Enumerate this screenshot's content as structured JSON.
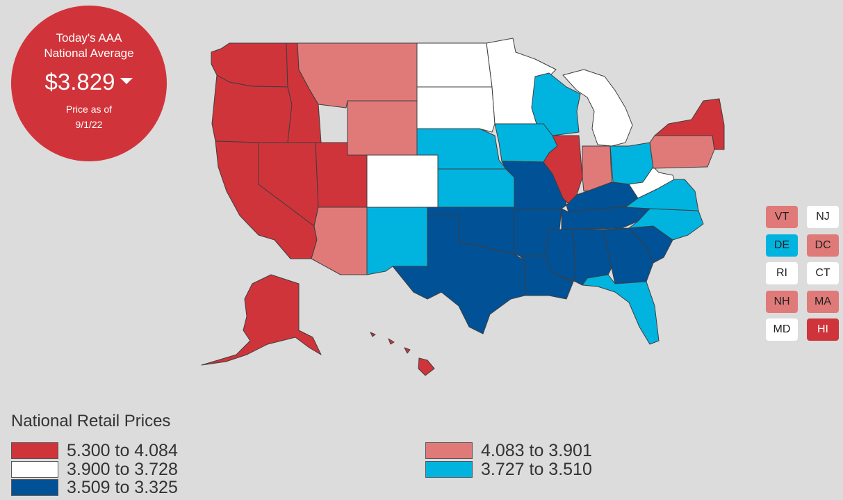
{
  "badge": {
    "line1": "Today's AAA",
    "line2": "National Average",
    "price": "$3.829",
    "asof_line1": "Price as of",
    "asof_line2": "9/1/22"
  },
  "colors": {
    "high": "#cf343a",
    "midhigh": "#e07a79",
    "mid": "#ffffff",
    "midlow": "#00b4df",
    "low": "#005196"
  },
  "chips": [
    {
      "label": "VT",
      "tier": "midhigh"
    },
    {
      "label": "NJ",
      "tier": "mid"
    },
    {
      "label": "DE",
      "tier": "midlow"
    },
    {
      "label": "DC",
      "tier": "midhigh"
    },
    {
      "label": "RI",
      "tier": "mid"
    },
    {
      "label": "CT",
      "tier": "mid"
    },
    {
      "label": "NH",
      "tier": "midhigh"
    },
    {
      "label": "MA",
      "tier": "midhigh"
    },
    {
      "label": "MD",
      "tier": "mid"
    },
    {
      "label": "HI",
      "tier": "high"
    }
  ],
  "states": [
    {
      "code": "WA",
      "tier": "high"
    },
    {
      "code": "OR",
      "tier": "high"
    },
    {
      "code": "CA",
      "tier": "high"
    },
    {
      "code": "NV",
      "tier": "high"
    },
    {
      "code": "ID",
      "tier": "high"
    },
    {
      "code": "UT",
      "tier": "high"
    },
    {
      "code": "AK",
      "tier": "high"
    },
    {
      "code": "HI",
      "tier": "high"
    },
    {
      "code": "IL",
      "tier": "high"
    },
    {
      "code": "NY",
      "tier": "high"
    },
    {
      "code": "MT",
      "tier": "midhigh"
    },
    {
      "code": "WY",
      "tier": "midhigh"
    },
    {
      "code": "AZ",
      "tier": "midhigh"
    },
    {
      "code": "IN",
      "tier": "midhigh"
    },
    {
      "code": "PA",
      "tier": "midhigh"
    },
    {
      "code": "ND",
      "tier": "mid"
    },
    {
      "code": "SD",
      "tier": "mid"
    },
    {
      "code": "MN",
      "tier": "mid"
    },
    {
      "code": "CO",
      "tier": "mid"
    },
    {
      "code": "MI",
      "tier": "mid"
    },
    {
      "code": "WV",
      "tier": "mid"
    },
    {
      "code": "NE",
      "tier": "midlow"
    },
    {
      "code": "KS",
      "tier": "midlow"
    },
    {
      "code": "IA",
      "tier": "midlow"
    },
    {
      "code": "WI",
      "tier": "midlow"
    },
    {
      "code": "NM",
      "tier": "midlow"
    },
    {
      "code": "OH",
      "tier": "midlow"
    },
    {
      "code": "VA",
      "tier": "midlow"
    },
    {
      "code": "NC",
      "tier": "midlow"
    },
    {
      "code": "FL",
      "tier": "midlow"
    },
    {
      "code": "TX",
      "tier": "low"
    },
    {
      "code": "OK",
      "tier": "low"
    },
    {
      "code": "MO",
      "tier": "low"
    },
    {
      "code": "AR",
      "tier": "low"
    },
    {
      "code": "LA",
      "tier": "low"
    },
    {
      "code": "MS",
      "tier": "low"
    },
    {
      "code": "AL",
      "tier": "low"
    },
    {
      "code": "GA",
      "tier": "low"
    },
    {
      "code": "SC",
      "tier": "low"
    },
    {
      "code": "TN",
      "tier": "low"
    },
    {
      "code": "KY",
      "tier": "low"
    }
  ],
  "legend": {
    "title": "National Retail Prices",
    "items": [
      {
        "label": "5.300 to 4.084",
        "tier": "high"
      },
      {
        "label": "3.900 to 3.728",
        "tier": "mid"
      },
      {
        "label": "3.509 to 3.325",
        "tier": "low"
      },
      {
        "label": "4.083 to 3.901",
        "tier": "midhigh"
      },
      {
        "label": "3.727 to 3.510",
        "tier": "midlow"
      }
    ]
  }
}
